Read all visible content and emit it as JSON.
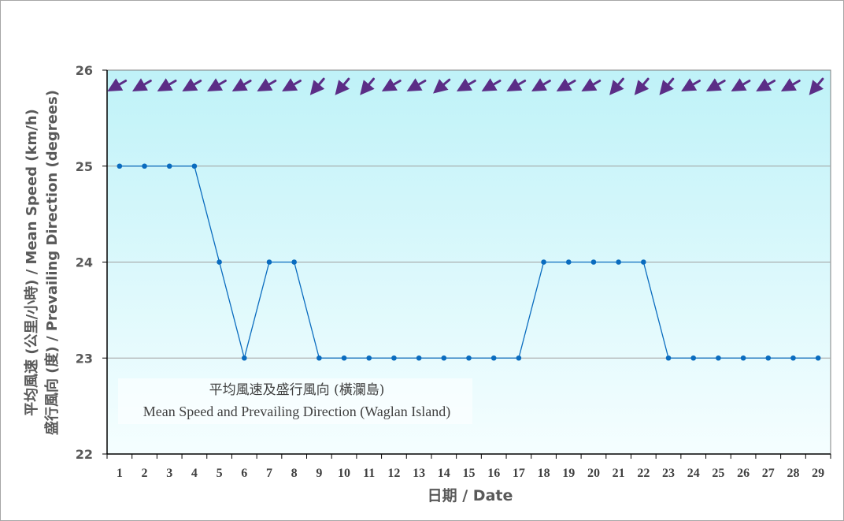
{
  "chart_data": {
    "type": "line",
    "title": "平均風速及盛行風向 (橫瀾島) / Mean Speed and Prevailing Direction (Waglan Island)",
    "title_zh": "平均風速及盛行風向 (橫瀾島)",
    "title_en": "Mean Speed and Prevailing Direction (Waglan Island)",
    "xlabel": "日期 / Date",
    "ylabel_line1": "平均風速 (公里/小時) / Mean Speed (km/h)",
    "ylabel_line2": "盛行風向 (度) / Prevailing Direction (degrees)",
    "ylim": [
      22,
      26
    ],
    "yticks": [
      22,
      23,
      24,
      25,
      26
    ],
    "grid": true,
    "legend": "none",
    "x": [
      1,
      2,
      3,
      4,
      5,
      6,
      7,
      8,
      9,
      10,
      11,
      12,
      13,
      14,
      15,
      16,
      17,
      18,
      19,
      20,
      21,
      22,
      23,
      24,
      25,
      26,
      27,
      28,
      29
    ],
    "series": [
      {
        "name": "Mean Speed (km/h)",
        "color": "#0a6cbf",
        "values": [
          25,
          25,
          25,
          25,
          24,
          23,
          24,
          24,
          23,
          23,
          23,
          23,
          23,
          23,
          23,
          23,
          23,
          24,
          24,
          24,
          24,
          24,
          23,
          23,
          23,
          23,
          23,
          23,
          23
        ]
      },
      {
        "name": "Prevailing Direction (degrees)",
        "color": "#5b2d86",
        "display": "arrows",
        "values": [
          60,
          60,
          60,
          60,
          60,
          60,
          60,
          60,
          40,
          40,
          40,
          60,
          60,
          50,
          60,
          60,
          60,
          60,
          60,
          60,
          40,
          40,
          40,
          60,
          60,
          60,
          60,
          60,
          40
        ]
      }
    ]
  },
  "colors": {
    "plot_top": "#bff2f8",
    "plot_bottom": "#f5feff",
    "line": "#0a6cbf",
    "arrow": "#5b2d86",
    "grid": "#a0a0a0"
  }
}
